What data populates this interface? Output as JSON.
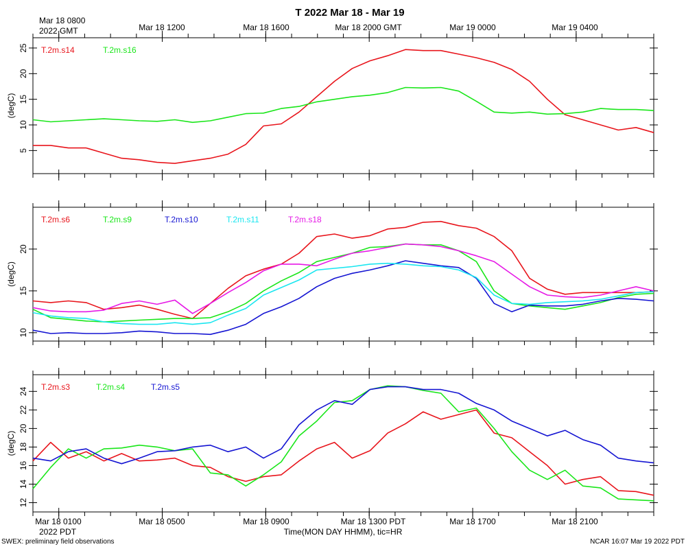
{
  "header": {
    "title": "T 2022 Mar 18 - Mar 19",
    "gmt_start_line1": "Mar 18 0800",
    "gmt_start_line2": "2022 GMT",
    "gmt_ticks": [
      "Mar 18 1200",
      "Mar 18 1600",
      "Mar 18 2000 GMT",
      "Mar 19 0000",
      "Mar 19 0400"
    ]
  },
  "footer": {
    "pdt_ticks": [
      "Mar 18 0100",
      "Mar 18 0500",
      "Mar 18 0900",
      "Mar 18 1300 PDT",
      "Mar 18 1700",
      "Mar 18 2100"
    ],
    "pdt_year": "2022 PDT",
    "xlabel": "Time(MON DAY HHMM), tic=HR",
    "left_note": "SWEX: preliminary field observations",
    "right_note": "NCAR 16:07 Mar 19 2022 PDT"
  },
  "colors": {
    "red": "#e8141b",
    "green": "#19e619",
    "blue": "#1414d2",
    "cyan": "#19e6f0",
    "magenta": "#e619e6"
  },
  "chart_data": [
    {
      "type": "line",
      "title": "T 2022 Mar 18 - Mar 19",
      "xlabel": "Time(MON DAY HHMM), tic=HR",
      "ylabel": "(degC)",
      "x_hours_since_mar18_0000_pdt": [
        0,
        24
      ],
      "xlim_hours_pdt": [
        0,
        24
      ],
      "ylim": [
        0.5,
        27
      ],
      "yticks": [
        5,
        10,
        15,
        20,
        25
      ],
      "legend": "top-left",
      "series": [
        {
          "name": "T.2m.s14",
          "color": "red",
          "values": [
            6.0,
            6.0,
            5.5,
            5.5,
            4.5,
            3.5,
            3.2,
            2.7,
            2.5,
            3.0,
            3.5,
            4.3,
            6.2,
            9.8,
            10.2,
            12.5,
            15.5,
            18.5,
            21,
            22.5,
            23.5,
            24.7,
            24.5,
            24.5,
            23.8,
            23.1,
            22.2,
            20.8,
            18.5,
            15,
            12,
            11,
            10,
            9,
            9.5,
            8.5
          ]
        },
        {
          "name": "T.2m.s16",
          "color": "green",
          "values": [
            11,
            10.6,
            10.8,
            11,
            11.2,
            11,
            10.8,
            10.7,
            11,
            10.5,
            10.8,
            11.5,
            12.2,
            12.3,
            13.2,
            13.6,
            14.5,
            15,
            15.5,
            15.8,
            16.3,
            17.3,
            17.2,
            17.3,
            16.6,
            14.6,
            12.5,
            12.3,
            12.5,
            12.1,
            12.2,
            12.5,
            13.2,
            13,
            13.0,
            12.8
          ]
        }
      ]
    },
    {
      "type": "line",
      "ylabel": "(degC)",
      "ylim": [
        9,
        25
      ],
      "yticks": [
        10,
        15,
        20
      ],
      "legend": "top-left",
      "series": [
        {
          "name": "T.2m.s6",
          "color": "red",
          "values": [
            13.8,
            13.6,
            13.8,
            13.6,
            12.8,
            13,
            13.3,
            12.8,
            12.2,
            11.7,
            13.5,
            15.3,
            16.8,
            17.6,
            18.2,
            19.5,
            21.5,
            21.8,
            21.3,
            21.6,
            22.4,
            22.6,
            23.2,
            23.3,
            22.8,
            22.5,
            21.5,
            19.8,
            16.5,
            15.2,
            14.6,
            14.8,
            14.8,
            14.8,
            14.8,
            14.9
          ]
        },
        {
          "name": "T.2m.s9",
          "color": "green",
          "values": [
            12.8,
            11.8,
            11.6,
            11.4,
            11.3,
            11.4,
            11.5,
            11.6,
            11.7,
            11.7,
            11.8,
            12.5,
            13.5,
            15,
            16.2,
            17.2,
            18.5,
            19,
            19.5,
            20.2,
            20.3,
            20.6,
            20.5,
            20.5,
            19.8,
            18.5,
            15,
            13.5,
            13.2,
            13,
            12.8,
            13.2,
            13.6,
            14.2,
            14.6,
            14.7
          ]
        },
        {
          "name": "T.2m.s10",
          "color": "blue",
          "values": [
            10.3,
            9.9,
            10.0,
            9.9,
            9.9,
            10.0,
            10.2,
            10.1,
            9.9,
            9.9,
            9.8,
            10.3,
            11.0,
            12.3,
            13.1,
            14.1,
            15.5,
            16.5,
            17.1,
            17.5,
            18.0,
            18.6,
            18.3,
            18.0,
            17.8,
            16.5,
            13.5,
            12.5,
            13.3,
            13.2,
            13.2,
            13.4,
            13.8,
            14.1,
            14.0,
            13.8
          ]
        },
        {
          "name": "T.2m.s11",
          "color": "cyan",
          "values": [
            12.4,
            12.0,
            11.8,
            11.7,
            11.3,
            11.1,
            11.0,
            11.0,
            11.2,
            11.0,
            11.2,
            12.1,
            12.9,
            14.5,
            15.4,
            16.3,
            17.5,
            17.7,
            17.9,
            18.2,
            18.3,
            18.2,
            18.0,
            17.9,
            17.5,
            16.6,
            14.5,
            13.5,
            13.4,
            13.6,
            13.7,
            13.8,
            14.0,
            14.4,
            14.8,
            14.9
          ]
        },
        {
          "name": "T.2m.s18",
          "color": "magenta",
          "values": [
            13.0,
            12.6,
            12.5,
            12.5,
            12.7,
            13.5,
            13.8,
            13.4,
            13.9,
            12.3,
            13.5,
            14.8,
            16.0,
            17.4,
            18.2,
            18.2,
            18.0,
            18.8,
            19.5,
            19.8,
            20.2,
            20.6,
            20.5,
            20.3,
            19.8,
            19.2,
            18.5,
            17.0,
            15.5,
            14.5,
            14.3,
            14.2,
            14.5,
            15.0,
            15.5,
            15.0
          ]
        }
      ]
    },
    {
      "type": "line",
      "ylabel": "(degC)",
      "ylim": [
        11,
        25.8
      ],
      "yticks": [
        12,
        14,
        16,
        18,
        20,
        22,
        24
      ],
      "legend": "top-left",
      "series": [
        {
          "name": "T.2m.s3",
          "color": "red",
          "values": [
            16.5,
            18.5,
            16.8,
            17.5,
            16.5,
            17.3,
            16.5,
            16.6,
            16.8,
            16.0,
            15.8,
            14.8,
            14.3,
            14.8,
            15.0,
            16.5,
            17.8,
            18.5,
            16.8,
            17.6,
            19.5,
            20.5,
            21.8,
            21.0,
            21.5,
            22.0,
            19.5,
            19.0,
            17.5,
            16.0,
            14.0,
            14.5,
            14.8,
            13.3,
            13.2,
            12.8
          ]
        },
        {
          "name": "T.2m.s4",
          "color": "green",
          "values": [
            13.5,
            15.8,
            17.8,
            16.8,
            17.8,
            17.9,
            18.2,
            18.0,
            17.6,
            17.8,
            15.2,
            15.0,
            13.8,
            15.0,
            16.4,
            19.2,
            20.8,
            22.8,
            23.0,
            24.2,
            24.6,
            24.5,
            24.1,
            23.8,
            21.8,
            22.2,
            20.0,
            17.5,
            15.5,
            14.5,
            15.5,
            13.8,
            13.6,
            12.4,
            12.3,
            12.2
          ]
        },
        {
          "name": "T.2m.s5",
          "color": "blue",
          "values": [
            16.8,
            16.5,
            17.5,
            17.8,
            16.8,
            16.2,
            16.8,
            17.5,
            17.6,
            18.0,
            18.2,
            17.5,
            18.0,
            16.8,
            17.8,
            20.4,
            22.0,
            23.0,
            22.6,
            24.2,
            24.5,
            24.5,
            24.2,
            24.2,
            23.8,
            22.7,
            22.0,
            20.8,
            20.0,
            19.2,
            19.8,
            18.8,
            18.2,
            16.8,
            16.5,
            16.3
          ]
        }
      ]
    }
  ]
}
